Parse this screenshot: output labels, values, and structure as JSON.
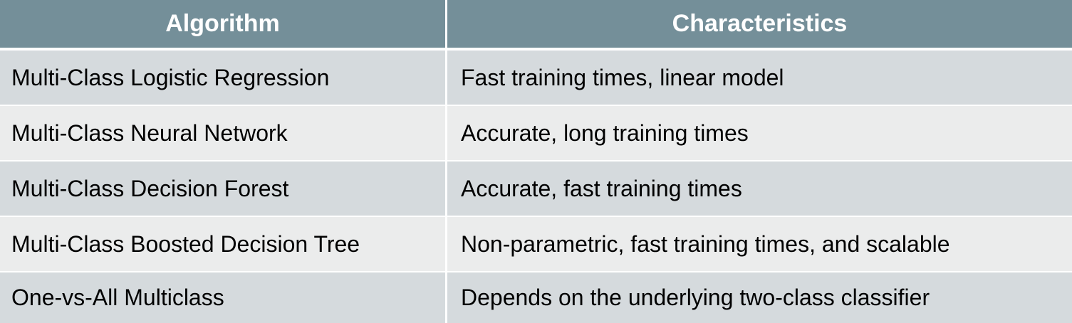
{
  "table": {
    "headers": [
      "Algorithm",
      "Characteristics"
    ],
    "rows": [
      {
        "algorithm": "Multi-Class Logistic Regression",
        "characteristics": "Fast training times, linear model"
      },
      {
        "algorithm": "Multi-Class Neural Network",
        "characteristics": "Accurate, long training times"
      },
      {
        "algorithm": "Multi-Class Decision Forest",
        "characteristics": "Accurate, fast training times"
      },
      {
        "algorithm": "Multi-Class Boosted Decision Tree",
        "characteristics": "Non-parametric, fast training times, and scalable"
      },
      {
        "algorithm": "One-vs-All Multiclass",
        "characteristics": "Depends on the underlying two-class classifier"
      }
    ]
  },
  "colors": {
    "header_bg": "#748f99",
    "row_odd_bg": "#d5dadd",
    "row_even_bg": "#ebecec",
    "header_text": "#ffffff",
    "body_text": "#000000"
  }
}
